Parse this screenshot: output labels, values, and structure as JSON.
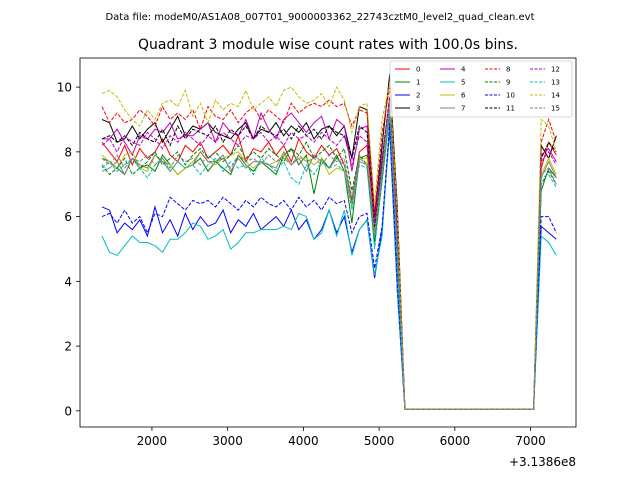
{
  "chart_data": {
    "type": "line",
    "suptitle": "Data file: modeM0/AS1A08_007T01_9000003362_22743cztM0_level2_quad_clean.evt",
    "title": "Quadrant 3 module wise count rates with 100.0s bins.",
    "xlabel": "",
    "ylabel": "",
    "x_offset_label": "+3.1386e8",
    "xlim": [
      1050,
      7600
    ],
    "ylim": [
      -0.5,
      10.9
    ],
    "x_ticks": [
      2000,
      3000,
      4000,
      5000,
      6000,
      7000
    ],
    "y_ticks": [
      0,
      2,
      4,
      6,
      8,
      10
    ],
    "x_tick_labels": [
      "2000",
      "3000",
      "4000",
      "5000",
      "6000",
      "7000"
    ],
    "y_tick_labels": [
      "0",
      "2",
      "4",
      "6",
      "8",
      "10"
    ],
    "legend_position": "top-right",
    "x": [
      1340,
      1440,
      1540,
      1640,
      1740,
      1840,
      1940,
      2040,
      2140,
      2240,
      2340,
      2440,
      2540,
      2640,
      2740,
      2840,
      2940,
      3040,
      3140,
      3240,
      3340,
      3440,
      3540,
      3640,
      3740,
      3840,
      3940,
      4040,
      4140,
      4240,
      4340,
      4440,
      4540,
      4640,
      4740,
      4840,
      4940,
      5040,
      5140,
      5240,
      5340,
      7040,
      7140,
      7240,
      7340
    ],
    "series": [
      {
        "name": "0",
        "color": "#ff0000",
        "dash": "solid",
        "values": [
          8.3,
          8.0,
          7.7,
          8.2,
          7.6,
          8.1,
          7.8,
          8.0,
          8.4,
          7.9,
          7.7,
          8.2,
          8.0,
          8.3,
          7.8,
          8.0,
          8.2,
          7.9,
          8.5,
          7.7,
          8.1,
          8.0,
          8.3,
          7.9,
          8.2,
          7.7,
          8.4,
          8.0,
          7.8,
          8.2,
          7.9,
          8.1,
          7.6,
          6.5,
          8.0,
          8.2,
          5.8,
          7.5,
          9.5,
          5.0,
          0.05,
          0.05,
          7.5,
          8.3,
          7.9
        ]
      },
      {
        "name": "1",
        "color": "#008000",
        "dash": "solid",
        "values": [
          7.8,
          7.7,
          7.5,
          7.3,
          7.8,
          7.5,
          7.6,
          7.4,
          7.9,
          7.6,
          7.3,
          7.5,
          7.6,
          7.8,
          7.4,
          7.7,
          7.5,
          7.3,
          7.9,
          7.6,
          7.4,
          7.7,
          7.5,
          7.3,
          7.9,
          8.1,
          7.6,
          7.9,
          6.7,
          7.8,
          7.5,
          7.9,
          7.4,
          5.8,
          7.8,
          7.9,
          5.2,
          7.1,
          9.2,
          4.6,
          0.05,
          0.05,
          6.8,
          7.5,
          7.2
        ]
      },
      {
        "name": "2",
        "color": "#0000ff",
        "dash": "solid",
        "values": [
          6.3,
          6.2,
          5.5,
          5.8,
          5.6,
          5.9,
          5.4,
          6.3,
          5.5,
          5.9,
          5.4,
          6.1,
          5.6,
          6.0,
          5.7,
          5.8,
          6.2,
          5.5,
          5.9,
          5.7,
          6.1,
          5.6,
          5.8,
          6.0,
          5.7,
          6.2,
          5.6,
          5.9,
          5.3,
          5.6,
          6.2,
          5.5,
          6.0,
          4.9,
          5.6,
          5.9,
          4.1,
          5.6,
          8.7,
          3.7,
          0.05,
          0.05,
          5.7,
          5.5,
          5.3
        ]
      },
      {
        "name": "3",
        "color": "#000000",
        "dash": "solid",
        "values": [
          9.0,
          8.9,
          8.3,
          8.4,
          8.8,
          8.4,
          8.7,
          8.9,
          8.3,
          8.7,
          9.1,
          8.5,
          8.8,
          8.7,
          8.9,
          8.6,
          8.5,
          8.4,
          8.7,
          8.9,
          8.4,
          8.7,
          8.6,
          8.9,
          8.5,
          8.8,
          8.6,
          8.9,
          8.4,
          8.7,
          8.8,
          8.5,
          8.8,
          7.8,
          9.4,
          9.3,
          6.0,
          8.2,
          10.4,
          6.3,
          0.05,
          0.05,
          8.2,
          7.8,
          8.5
        ]
      },
      {
        "name": "4",
        "color": "#bf00bf",
        "dash": "solid",
        "values": [
          8.4,
          8.4,
          8.7,
          8.3,
          7.9,
          8.5,
          8.4,
          8.7,
          8.6,
          8.9,
          8.4,
          8.5,
          8.5,
          8.7,
          8.9,
          8.3,
          8.9,
          8.6,
          8.5,
          9.0,
          8.4,
          9.2,
          8.7,
          8.4,
          9.0,
          9.2,
          8.9,
          8.6,
          8.9,
          9.1,
          8.4,
          9.0,
          8.8,
          7.4,
          8.7,
          8.8,
          5.6,
          7.7,
          9.6,
          5.6,
          0.05,
          0.05,
          7.9,
          8.1,
          7.7
        ]
      },
      {
        "name": "5",
        "color": "#00bfbf",
        "dash": "solid",
        "values": [
          5.4,
          4.9,
          4.8,
          5.1,
          5.4,
          5.2,
          5.2,
          5.1,
          4.9,
          5.3,
          5.3,
          5.5,
          5.8,
          5.7,
          5.3,
          5.4,
          5.6,
          5.0,
          5.2,
          5.5,
          5.5,
          5.6,
          5.6,
          5.6,
          5.7,
          5.6,
          6.1,
          6.0,
          5.3,
          5.5,
          6.2,
          5.4,
          6.2,
          4.8,
          5.6,
          5.9,
          4.2,
          5.4,
          8.9,
          3.8,
          0.05,
          0.05,
          5.4,
          5.2,
          4.8
        ]
      },
      {
        "name": "6",
        "color": "#bfbf00",
        "dash": "solid",
        "values": [
          7.9,
          7.7,
          7.5,
          7.9,
          8.0,
          7.5,
          7.4,
          7.9,
          7.7,
          7.6,
          7.3,
          7.5,
          7.7,
          8.0,
          7.7,
          7.6,
          7.8,
          7.9,
          8.0,
          7.7,
          7.5,
          7.7,
          7.6,
          7.7,
          7.9,
          7.6,
          7.8,
          7.8,
          7.6,
          7.8,
          7.3,
          7.5,
          7.4,
          6.3,
          7.8,
          7.8,
          5.4,
          7.4,
          9.7,
          5.0,
          0.05,
          0.05,
          7.3,
          7.8,
          7.3
        ]
      },
      {
        "name": "7",
        "color": "#808080",
        "dash": "solid",
        "values": [
          7.4,
          7.5,
          7.7,
          7.3,
          7.8,
          7.6,
          7.5,
          7.9,
          7.7,
          7.4,
          7.7,
          7.5,
          7.6,
          8.0,
          7.7,
          7.7,
          7.9,
          7.4,
          7.8,
          7.5,
          7.7,
          7.7,
          7.6,
          7.5,
          8.0,
          7.6,
          7.8,
          7.4,
          7.9,
          7.7,
          7.5,
          7.8,
          7.6,
          6.4,
          7.7,
          7.6,
          5.7,
          7.3,
          9.2,
          4.9,
          0.05,
          0.05,
          7.2,
          7.7,
          7.2
        ]
      },
      {
        "name": "8",
        "color": "#ff0000",
        "dash": "dashed",
        "values": [
          9.4,
          8.9,
          9.2,
          8.9,
          9.0,
          9.3,
          9.1,
          8.8,
          9.4,
          9.0,
          9.2,
          9.0,
          9.3,
          8.7,
          9.4,
          9.1,
          9.0,
          9.3,
          8.9,
          9.2,
          9.4,
          9.0,
          9.3,
          9.1,
          8.9,
          9.5,
          9.2,
          9.4,
          9.5,
          9.4,
          9.6,
          9.4,
          9.5,
          8.8,
          9.3,
          9.2,
          6.1,
          8.6,
          10.0,
          6.1,
          0.05,
          0.05,
          8.3,
          9.0,
          8.3
        ]
      },
      {
        "name": "9",
        "color": "#008000",
        "dash": "dashed",
        "values": [
          7.6,
          7.3,
          7.5,
          7.8,
          7.3,
          7.5,
          7.7,
          8.0,
          7.6,
          7.8,
          8.0,
          7.6,
          7.9,
          8.1,
          7.8,
          8.0,
          7.7,
          7.9,
          8.2,
          7.8,
          8.0,
          7.8,
          8.1,
          7.9,
          7.7,
          8.1,
          7.9,
          8.3,
          7.8,
          8.0,
          8.2,
          7.8,
          8.1,
          6.8,
          7.9,
          7.6,
          5.1,
          7.5,
          9.3,
          4.8,
          0.05,
          0.05,
          7.0,
          7.4,
          7.0
        ]
      },
      {
        "name": "10",
        "color": "#0000ff",
        "dash": "dashed",
        "values": [
          6.0,
          6.1,
          5.8,
          6.2,
          5.8,
          6.0,
          5.5,
          6.1,
          6.0,
          6.6,
          6.4,
          6.2,
          6.5,
          6.4,
          6.5,
          6.3,
          6.6,
          6.4,
          6.2,
          6.5,
          6.3,
          6.6,
          6.4,
          6.3,
          6.5,
          6.2,
          6.6,
          6.3,
          6.5,
          6.2,
          6.6,
          6.4,
          6.5,
          5.5,
          6.0,
          6.1,
          4.4,
          5.7,
          8.9,
          4.0,
          0.05,
          0.05,
          6.0,
          6.0,
          5.5
        ]
      },
      {
        "name": "11",
        "color": "#000000",
        "dash": "dashed",
        "values": [
          8.4,
          8.5,
          8.3,
          8.5,
          8.2,
          8.6,
          8.4,
          8.3,
          8.7,
          8.2,
          8.8,
          8.4,
          8.7,
          8.6,
          8.5,
          8.8,
          8.3,
          8.7,
          8.5,
          8.8,
          8.4,
          8.8,
          8.6,
          8.5,
          8.7,
          8.4,
          8.8,
          8.5,
          8.7,
          8.4,
          8.8,
          8.6,
          8.5,
          7.8,
          8.8,
          8.6,
          5.7,
          7.8,
          9.7,
          5.6,
          0.05,
          0.05,
          7.8,
          8.3,
          8.0
        ]
      },
      {
        "name": "12",
        "color": "#bf00bf",
        "dash": "dashed",
        "values": [
          8.2,
          8.4,
          8.0,
          8.5,
          8.3,
          8.2,
          8.6,
          8.4,
          8.1,
          8.5,
          8.3,
          8.6,
          8.4,
          8.2,
          8.5,
          8.3,
          8.6,
          8.4,
          8.2,
          8.5,
          8.4,
          8.6,
          8.3,
          8.5,
          8.2,
          8.6,
          8.4,
          8.5,
          8.3,
          8.6,
          8.4,
          8.2,
          8.5,
          7.6,
          8.5,
          8.3,
          5.8,
          7.9,
          9.6,
          5.5,
          0.05,
          0.05,
          7.7,
          8.0,
          7.6
        ]
      },
      {
        "name": "13",
        "color": "#00bfbf",
        "dash": "dashed",
        "values": [
          7.5,
          7.7,
          7.4,
          7.6,
          7.8,
          7.5,
          7.2,
          7.6,
          7.8,
          7.4,
          7.7,
          7.5,
          7.6,
          7.3,
          7.6,
          7.8,
          7.4,
          7.7,
          7.5,
          7.6,
          7.3,
          7.8,
          7.6,
          7.4,
          7.7,
          7.2,
          7.0,
          7.6,
          7.3,
          7.7,
          7.5,
          7.6,
          7.4,
          6.2,
          7.6,
          7.5,
          5.0,
          7.2,
          9.3,
          4.6,
          0.05,
          0.05,
          7.2,
          7.3,
          6.9
        ]
      },
      {
        "name": "14",
        "color": "#bfbf00",
        "dash": "dashed",
        "values": [
          9.8,
          9.9,
          9.7,
          9.3,
          9.0,
          8.8,
          9.3,
          9.0,
          9.5,
          9.6,
          9.4,
          9.9,
          9.1,
          9.5,
          8.9,
          9.6,
          9.3,
          9.5,
          9.4,
          9.9,
          9.3,
          9.5,
          9.7,
          9.4,
          9.9,
          10.0,
          9.7,
          9.5,
          9.6,
          9.8,
          9.4,
          10.0,
          9.6,
          8.6,
          9.4,
          9.5,
          6.4,
          9.0,
          10.1,
          6.1,
          0.05,
          0.05,
          9.0,
          8.8,
          8.0
        ]
      },
      {
        "name": "15",
        "color": "#808080",
        "dash": "dashed",
        "values": [
          7.8,
          7.6,
          7.9,
          7.5,
          7.8,
          7.7,
          7.9,
          7.6,
          7.8,
          7.5,
          7.9,
          7.7,
          7.8,
          7.6,
          7.9,
          7.7,
          7.8,
          7.5,
          7.9,
          7.7,
          7.8,
          7.6,
          7.9,
          7.7,
          7.8,
          7.6,
          7.9,
          7.7,
          7.8,
          7.6,
          7.9,
          7.7,
          7.8,
          6.6,
          7.8,
          7.6,
          5.4,
          7.4,
          9.4,
          5.0,
          0.05,
          0.05,
          7.3,
          7.5,
          7.0
        ]
      }
    ]
  }
}
